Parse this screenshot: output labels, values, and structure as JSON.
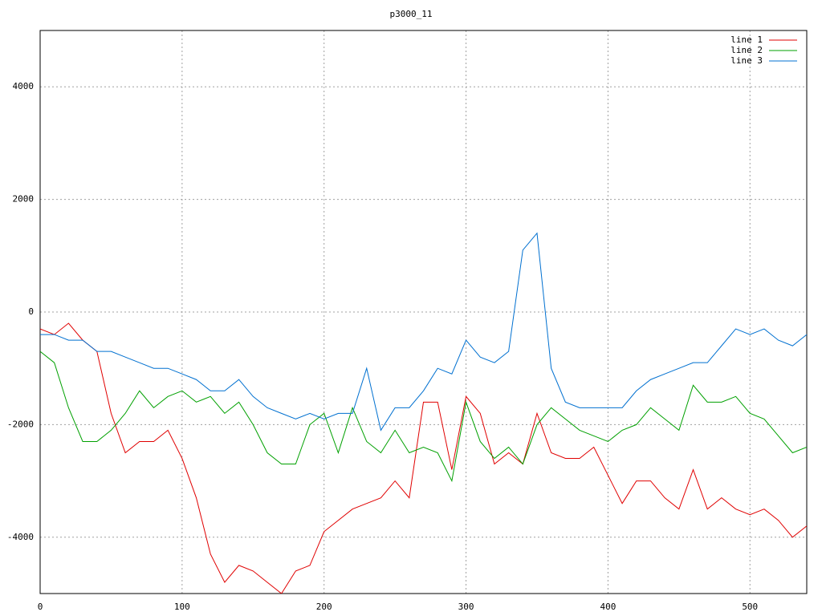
{
  "chart_data": {
    "type": "line",
    "title": "p3000_11",
    "x": [
      0,
      10,
      20,
      30,
      40,
      50,
      60,
      70,
      80,
      90,
      100,
      110,
      120,
      130,
      140,
      150,
      160,
      170,
      180,
      190,
      200,
      210,
      220,
      230,
      240,
      250,
      260,
      270,
      280,
      290,
      300,
      310,
      320,
      330,
      340,
      350,
      360,
      370,
      380,
      390,
      400,
      410,
      420,
      430,
      440,
      450,
      460,
      470,
      480,
      490,
      500,
      510,
      520,
      530,
      540
    ],
    "series": [
      {
        "name": "line 1",
        "color": "#e00000",
        "values": [
          -300,
          -400,
          -200,
          -500,
          -700,
          -1800,
          -2500,
          -2300,
          -2300,
          -2100,
          -2600,
          -3300,
          -4300,
          -4800,
          -4500,
          -4600,
          -4800,
          -5000,
          -4600,
          -4500,
          -3900,
          -3700,
          -3500,
          -3400,
          -3300,
          -3000,
          -3300,
          -1600,
          -1600,
          -2800,
          -1500,
          -1800,
          -2700,
          -2500,
          -2700,
          -1800,
          -2500,
          -2600,
          -2600,
          -2400,
          -2900,
          -3400,
          -3000,
          -3000,
          -3300,
          -3500,
          -2800,
          -3500,
          -3300,
          -3500,
          -3600,
          -3500,
          -3700,
          -4000,
          -3800
        ]
      },
      {
        "name": "line 2",
        "color": "#00a000",
        "values": [
          -700,
          -900,
          -1700,
          -2300,
          -2300,
          -2100,
          -1800,
          -1400,
          -1700,
          -1500,
          -1400,
          -1600,
          -1500,
          -1800,
          -1600,
          -2000,
          -2500,
          -2700,
          -2700,
          -2000,
          -1800,
          -2500,
          -1700,
          -2300,
          -2500,
          -2100,
          -2500,
          -2400,
          -2500,
          -3000,
          -1600,
          -2300,
          -2600,
          -2400,
          -2700,
          -2000,
          -1700,
          -1900,
          -2100,
          -2200,
          -2300,
          -2100,
          -2000,
          -1700,
          -1900,
          -2100,
          -1300,
          -1600,
          -1600,
          -1500,
          -1800,
          -1900,
          -2200,
          -2500,
          -2400
        ]
      },
      {
        "name": "line 3",
        "color": "#0070d0",
        "values": [
          -400,
          -400,
          -500,
          -500,
          -700,
          -700,
          -800,
          -900,
          -1000,
          -1000,
          -1100,
          -1200,
          -1400,
          -1400,
          -1200,
          -1500,
          -1700,
          -1800,
          -1900,
          -1800,
          -1900,
          -1800,
          -1800,
          -1000,
          -2100,
          -1700,
          -1700,
          -1400,
          -1000,
          -1100,
          -500,
          -800,
          -900,
          -700,
          1100,
          1400,
          -1000,
          -1600,
          -1700,
          -1700,
          -1700,
          -1700,
          -1400,
          -1200,
          -1100,
          -1000,
          -900,
          -900,
          -600,
          -300,
          -400,
          -300,
          -500,
          -600,
          -400
        ]
      }
    ],
    "xlim": [
      0,
      540
    ],
    "ylim": [
      -5000,
      5000
    ],
    "xticks": [
      0,
      100,
      200,
      300,
      400,
      500
    ],
    "yticks": [
      -4000,
      -2000,
      0,
      2000,
      4000
    ],
    "grid": true,
    "legend": "top-right"
  }
}
